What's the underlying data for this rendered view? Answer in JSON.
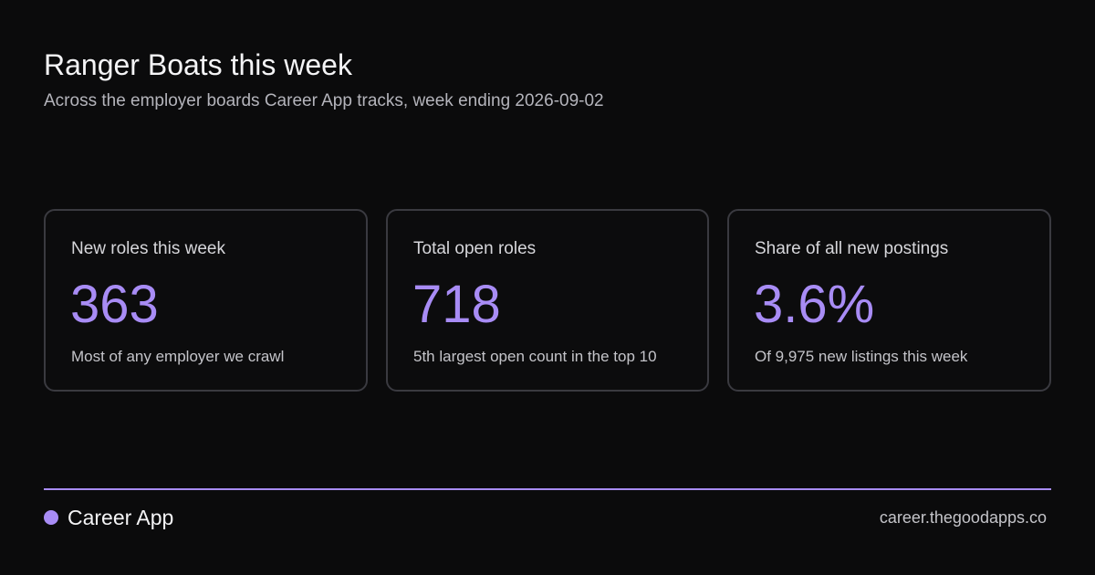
{
  "header": {
    "title": "Ranger Boats this week",
    "subtitle": "Across the employer boards Career App tracks, week ending 2026-09-02"
  },
  "stats": [
    {
      "label": "New roles this week",
      "value": "363",
      "note": "Most of any employer we crawl"
    },
    {
      "label": "Total open roles",
      "value": "718",
      "note": "5th largest open count in the top 10"
    },
    {
      "label": "Share of all new postings",
      "value": "3.6%",
      "note": "Of 9,975 new listings this week"
    }
  ],
  "footer": {
    "brand": "Career App",
    "url": "career.thegoodapps.co"
  },
  "colors": {
    "background": "#0b0b0c",
    "accent": "#a88cf5",
    "card_border": "#3a3a40",
    "muted_text": "#b4b4bb"
  },
  "icons": {
    "brand_mark": "dot-icon"
  }
}
